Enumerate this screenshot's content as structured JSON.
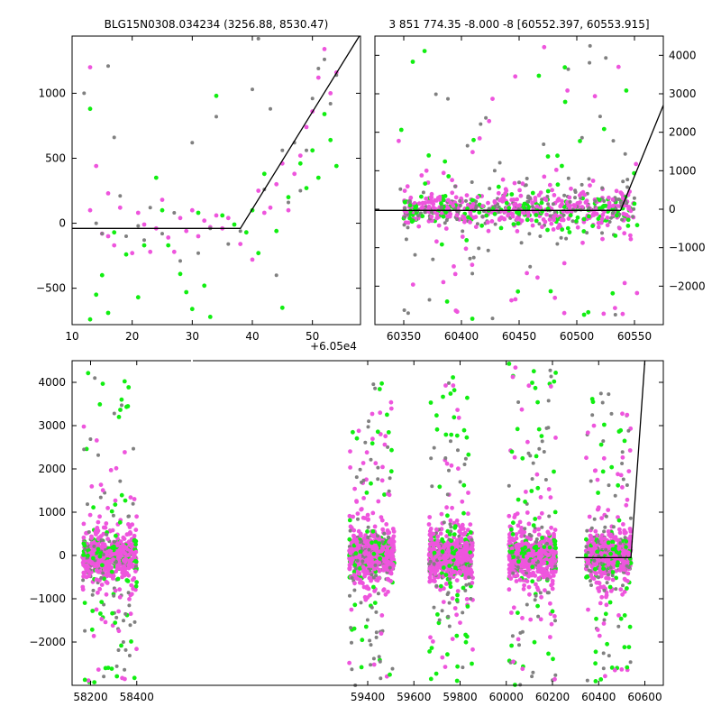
{
  "colors": {
    "pink": "#ee55dd",
    "green": "#11ee11",
    "gray": "#808080",
    "fit_line": "#000000"
  },
  "chart_data": [
    {
      "type": "scatter",
      "title": "BLG15N0308.034234 (3256.88, 8530.47)",
      "x_offset_label": "+6.05e4",
      "xlim": [
        10,
        58
      ],
      "ylim": [
        -780,
        1440
      ],
      "xticks": [
        10,
        20,
        30,
        40,
        50
      ],
      "yticks": [
        -500,
        0,
        500,
        1000
      ],
      "ytick_side": "left",
      "model_line": {
        "x": [
          10,
          38,
          57.8
        ],
        "y": [
          -40,
          -40,
          1440
        ]
      },
      "series": [
        {
          "color_key": "pink",
          "points": [
            [
              13,
              1200
            ],
            [
              14,
              440
            ],
            [
              13,
              100
            ],
            [
              15,
              -80
            ],
            [
              16,
              230
            ],
            [
              16,
              -100
            ],
            [
              17,
              -170
            ],
            [
              18,
              120
            ],
            [
              20,
              -230
            ],
            [
              21,
              80
            ],
            [
              22,
              -10
            ],
            [
              23,
              -220
            ],
            [
              24,
              -40
            ],
            [
              25,
              180
            ],
            [
              26,
              -110
            ],
            [
              27,
              -220
            ],
            [
              28,
              40
            ],
            [
              29,
              -60
            ],
            [
              30,
              100
            ],
            [
              31,
              -100
            ],
            [
              32,
              20
            ],
            [
              33,
              -30
            ],
            [
              34,
              60
            ],
            [
              35,
              -40
            ],
            [
              36,
              40
            ],
            [
              38,
              -160
            ],
            [
              40,
              -280
            ],
            [
              41,
              250
            ],
            [
              42,
              80
            ],
            [
              43,
              120
            ],
            [
              44,
              300
            ],
            [
              45,
              460
            ],
            [
              46,
              100
            ],
            [
              47,
              380
            ],
            [
              48,
              520
            ],
            [
              49,
              740
            ],
            [
              50,
              860
            ],
            [
              51,
              1120
            ],
            [
              52,
              1340
            ],
            [
              53,
              1000
            ],
            [
              54,
              1160
            ]
          ]
        },
        {
          "color_key": "green",
          "points": [
            [
              13,
              -740
            ],
            [
              13,
              880
            ],
            [
              14,
              -550
            ],
            [
              15,
              -400
            ],
            [
              16,
              -690
            ],
            [
              17,
              -70
            ],
            [
              19,
              -240
            ],
            [
              21,
              -570
            ],
            [
              22,
              -170
            ],
            [
              24,
              350
            ],
            [
              25,
              100
            ],
            [
              26,
              -170
            ],
            [
              28,
              -390
            ],
            [
              29,
              -530
            ],
            [
              30,
              -660
            ],
            [
              31,
              80
            ],
            [
              32,
              -480
            ],
            [
              33,
              -720
            ],
            [
              34,
              980
            ],
            [
              35,
              60
            ],
            [
              37,
              -10
            ],
            [
              39,
              -70
            ],
            [
              40,
              100
            ],
            [
              41,
              -230
            ],
            [
              42,
              380
            ],
            [
              44,
              -60
            ],
            [
              45,
              -650
            ],
            [
              46,
              200
            ],
            [
              48,
              460
            ],
            [
              49,
              270
            ],
            [
              50,
              560
            ],
            [
              51,
              350
            ],
            [
              52,
              840
            ],
            [
              53,
              640
            ],
            [
              54,
              440
            ]
          ]
        },
        {
          "color_key": "gray",
          "points": [
            [
              12,
              1000
            ],
            [
              14,
              0
            ],
            [
              15,
              -80
            ],
            [
              16,
              1210
            ],
            [
              17,
              660
            ],
            [
              18,
              210
            ],
            [
              19,
              -100
            ],
            [
              21,
              -20
            ],
            [
              22,
              -130
            ],
            [
              23,
              120
            ],
            [
              25,
              -80
            ],
            [
              27,
              80
            ],
            [
              28,
              -290
            ],
            [
              30,
              620
            ],
            [
              31,
              -230
            ],
            [
              33,
              -40
            ],
            [
              34,
              820
            ],
            [
              36,
              -160
            ],
            [
              38,
              -60
            ],
            [
              40,
              1030
            ],
            [
              41,
              1420
            ],
            [
              42,
              260
            ],
            [
              43,
              880
            ],
            [
              44,
              -400
            ],
            [
              45,
              560
            ],
            [
              46,
              160
            ],
            [
              47,
              620
            ],
            [
              48,
              250
            ],
            [
              49,
              560
            ],
            [
              50,
              960
            ],
            [
              51,
              1190
            ],
            [
              52,
              1260
            ],
            [
              53,
              920
            ],
            [
              54,
              1140
            ]
          ]
        }
      ]
    },
    {
      "type": "scatter",
      "title": "3 851 774.35 -8.000 -8 [60552.397, 60553.915]",
      "xlim": [
        60325,
        60575
      ],
      "ylim": [
        -3000,
        4500
      ],
      "xticks": [
        60350,
        60400,
        60450,
        60500,
        60550
      ],
      "yticks": [
        -2000,
        -1000,
        0,
        1000,
        2000,
        3000,
        4000
      ],
      "ytick_side": "right",
      "model_line": {
        "x": [
          60325,
          60538,
          60575
        ],
        "y": [
          -30,
          -30,
          2700
        ]
      },
      "bands": [
        {
          "x_range": [
            60350,
            60550
          ],
          "y_spread": [
            -450,
            450
          ],
          "n": 700,
          "weights": [
            0.55,
            0.2,
            0.25
          ]
        }
      ],
      "outliers": [
        {
          "x_range": [
            60345,
            60553
          ],
          "y_range": [
            -2900,
            4300
          ],
          "n": 110
        }
      ]
    },
    {
      "type": "scatter",
      "xlim": [
        58120,
        60680
      ],
      "ylim": [
        -3000,
        4500
      ],
      "xticks": [
        58200,
        58400,
        59400,
        59600,
        59800,
        60000,
        60200,
        60400,
        60600
      ],
      "yticks": [
        -2000,
        -1000,
        0,
        1000,
        2000,
        3000,
        4000
      ],
      "ytick_side": "left",
      "axis_break": [
        58430,
        59310
      ],
      "model_line": {
        "x": [
          60300,
          60540,
          60600
        ],
        "y": [
          -50,
          -50,
          4500
        ]
      },
      "bands": [
        {
          "x_range": [
            58165,
            58400
          ],
          "y_spread": [
            -450,
            450
          ],
          "n": 650,
          "weights": [
            0.75,
            0.12,
            0.13
          ]
        },
        {
          "x_range": [
            59320,
            59515
          ],
          "y_spread": [
            -450,
            450
          ],
          "n": 650,
          "weights": [
            0.75,
            0.12,
            0.13
          ]
        },
        {
          "x_range": [
            59665,
            59855
          ],
          "y_spread": [
            -450,
            450
          ],
          "n": 650,
          "weights": [
            0.75,
            0.12,
            0.13
          ]
        },
        {
          "x_range": [
            60010,
            60215
          ],
          "y_spread": [
            -450,
            450
          ],
          "n": 650,
          "weights": [
            0.75,
            0.12,
            0.13
          ]
        },
        {
          "x_range": [
            60345,
            60540
          ],
          "y_spread": [
            -450,
            450
          ],
          "n": 550,
          "weights": [
            0.7,
            0.15,
            0.15
          ]
        }
      ],
      "outliers": [
        {
          "x_range": [
            58165,
            58400
          ],
          "y_range": [
            -3000,
            4400
          ],
          "n": 110
        },
        {
          "x_range": [
            59320,
            59515
          ],
          "y_range": [
            -3000,
            4000
          ],
          "n": 110
        },
        {
          "x_range": [
            59665,
            59855
          ],
          "y_range": [
            -3000,
            4300
          ],
          "n": 110
        },
        {
          "x_range": [
            60010,
            60215
          ],
          "y_range": [
            -3000,
            4500
          ],
          "n": 110
        },
        {
          "x_range": [
            60345,
            60540
          ],
          "y_range": [
            -3000,
            3800
          ],
          "n": 110
        }
      ]
    }
  ]
}
